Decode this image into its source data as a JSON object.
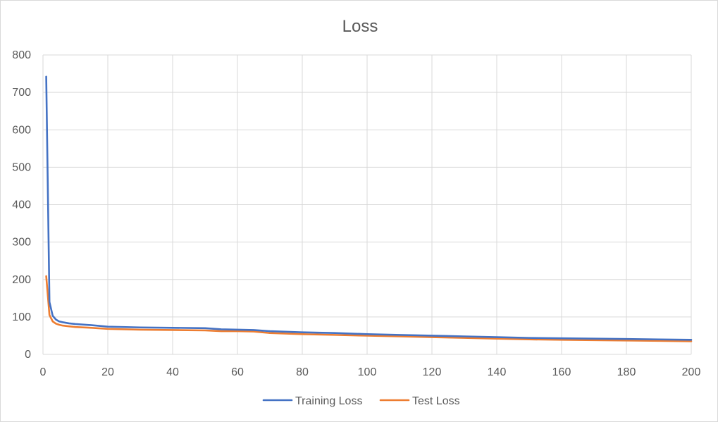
{
  "chart_data": {
    "type": "line",
    "title": "Loss",
    "xlabel": "",
    "ylabel": "",
    "xlim": [
      0,
      200
    ],
    "ylim": [
      0,
      800
    ],
    "x_ticks": [
      0,
      20,
      40,
      60,
      80,
      100,
      120,
      140,
      160,
      180,
      200
    ],
    "y_ticks": [
      0,
      100,
      200,
      300,
      400,
      500,
      600,
      700,
      800
    ],
    "grid": true,
    "legend_position": "bottom",
    "series": [
      {
        "name": "Training Loss",
        "color": "#4472c4",
        "points": [
          [
            1,
            742
          ],
          [
            2,
            140
          ],
          [
            3,
            103
          ],
          [
            4,
            93
          ],
          [
            5,
            88
          ],
          [
            6,
            86
          ],
          [
            8,
            83
          ],
          [
            10,
            81
          ],
          [
            15,
            78
          ],
          [
            20,
            74
          ],
          [
            30,
            72
          ],
          [
            40,
            71
          ],
          [
            50,
            70
          ],
          [
            55,
            67
          ],
          [
            60,
            66
          ],
          [
            65,
            65
          ],
          [
            70,
            62
          ],
          [
            80,
            59
          ],
          [
            90,
            57
          ],
          [
            100,
            54
          ],
          [
            110,
            52
          ],
          [
            120,
            50
          ],
          [
            130,
            48
          ],
          [
            140,
            46
          ],
          [
            150,
            44
          ],
          [
            160,
            43
          ],
          [
            170,
            42
          ],
          [
            180,
            41
          ],
          [
            190,
            40
          ],
          [
            200,
            39
          ]
        ]
      },
      {
        "name": "Test Loss",
        "color": "#ed7d31",
        "points": [
          [
            1,
            209
          ],
          [
            2,
            105
          ],
          [
            3,
            88
          ],
          [
            4,
            82
          ],
          [
            5,
            79
          ],
          [
            6,
            77
          ],
          [
            8,
            75
          ],
          [
            10,
            73
          ],
          [
            15,
            71
          ],
          [
            20,
            68
          ],
          [
            30,
            66
          ],
          [
            40,
            65
          ],
          [
            50,
            64
          ],
          [
            55,
            62
          ],
          [
            60,
            62
          ],
          [
            65,
            61
          ],
          [
            70,
            57
          ],
          [
            80,
            54
          ],
          [
            90,
            52
          ],
          [
            100,
            50
          ],
          [
            110,
            48
          ],
          [
            120,
            46
          ],
          [
            130,
            44
          ],
          [
            140,
            42
          ],
          [
            150,
            40
          ],
          [
            160,
            39
          ],
          [
            170,
            38
          ],
          [
            180,
            37
          ],
          [
            190,
            36
          ],
          [
            200,
            35
          ]
        ]
      }
    ]
  }
}
